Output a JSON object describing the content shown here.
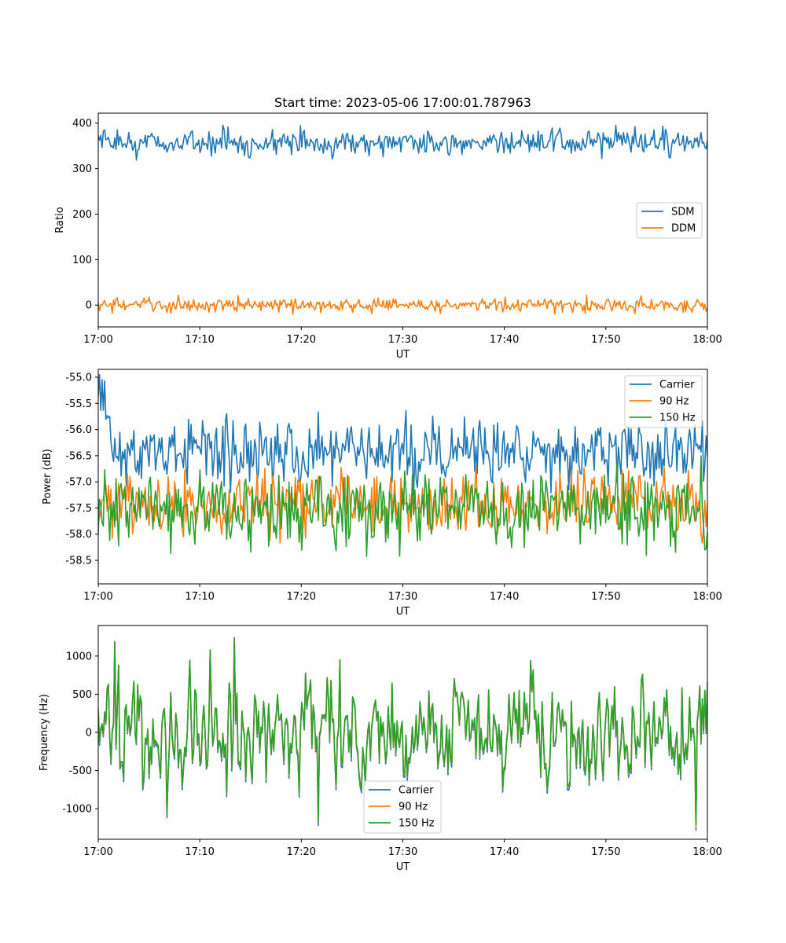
{
  "figure": {
    "title": "Start time: 2023-05-06 17:00:01.787963"
  },
  "chart_data": [
    {
      "type": "line",
      "title": "Start time: 2023-05-06 17:00:01.787963",
      "xlabel": "UT",
      "ylabel": "Ratio",
      "xlim": [
        "17:00",
        "18:00"
      ],
      "ylim": [
        -48,
        422
      ],
      "xticks": [
        "17:00",
        "17:10",
        "17:20",
        "17:30",
        "17:40",
        "17:50",
        "18:00"
      ],
      "yticks": [
        0,
        100,
        200,
        300,
        400
      ],
      "legend_position": "center-right",
      "series": [
        {
          "name": "SDM",
          "color": "#1f77b4",
          "mean": 357,
          "amplitude": 14,
          "min": 310,
          "max": 400,
          "points": 480
        },
        {
          "name": "DDM",
          "color": "#ff7f0e",
          "mean": 0,
          "amplitude": 8,
          "min": -25,
          "max": 23,
          "points": 480
        }
      ]
    },
    {
      "type": "line",
      "title": "",
      "xlabel": "UT",
      "ylabel": "Power (dB)",
      "xlim": [
        "17:00",
        "18:00"
      ],
      "ylim": [
        -58.95,
        -54.85
      ],
      "xticks": [
        "17:00",
        "17:10",
        "17:20",
        "17:30",
        "17:40",
        "17:50",
        "18:00"
      ],
      "yticks": [
        -55.0,
        -55.5,
        -56.0,
        -56.5,
        -57.0,
        -57.5,
        -58.0,
        -58.5
      ],
      "legend_position": "upper-right",
      "series": [
        {
          "name": "Carrier",
          "color": "#1f77b4",
          "mean": -56.4,
          "amplitude": 0.32,
          "min": -57.4,
          "max": -54.95,
          "points": 480
        },
        {
          "name": "90 Hz",
          "color": "#ff7f0e",
          "mean": -57.4,
          "amplitude": 0.3,
          "min": -58.4,
          "max": -56.5,
          "points": 480
        },
        {
          "name": "150 Hz",
          "color": "#2ca02c",
          "mean": -57.5,
          "amplitude": 0.35,
          "min": -58.75,
          "max": -56.5,
          "points": 480
        }
      ]
    },
    {
      "type": "line",
      "title": "",
      "xlabel": "UT",
      "ylabel": "Frequency (Hz)",
      "xlim": [
        "17:00",
        "18:00"
      ],
      "ylim": [
        -1400,
        1400
      ],
      "xticks": [
        "17:00",
        "17:10",
        "17:20",
        "17:30",
        "17:40",
        "17:50",
        "18:00"
      ],
      "yticks": [
        1000,
        500,
        0,
        -500,
        -1000
      ],
      "legend_position": "lower-center",
      "series": [
        {
          "name": "Carrier",
          "color": "#1f77b4",
          "mean": 0,
          "amplitude": 330,
          "min": -1280,
          "max": 1240,
          "points": 480
        },
        {
          "name": "90 Hz",
          "color": "#ff7f0e",
          "mean": 0,
          "amplitude": 330,
          "min": -1250,
          "max": 1250,
          "points": 480
        },
        {
          "name": "150 Hz",
          "color": "#2ca02c",
          "mean": 0,
          "amplitude": 330,
          "min": -1200,
          "max": 1260,
          "points": 480
        }
      ]
    }
  ]
}
